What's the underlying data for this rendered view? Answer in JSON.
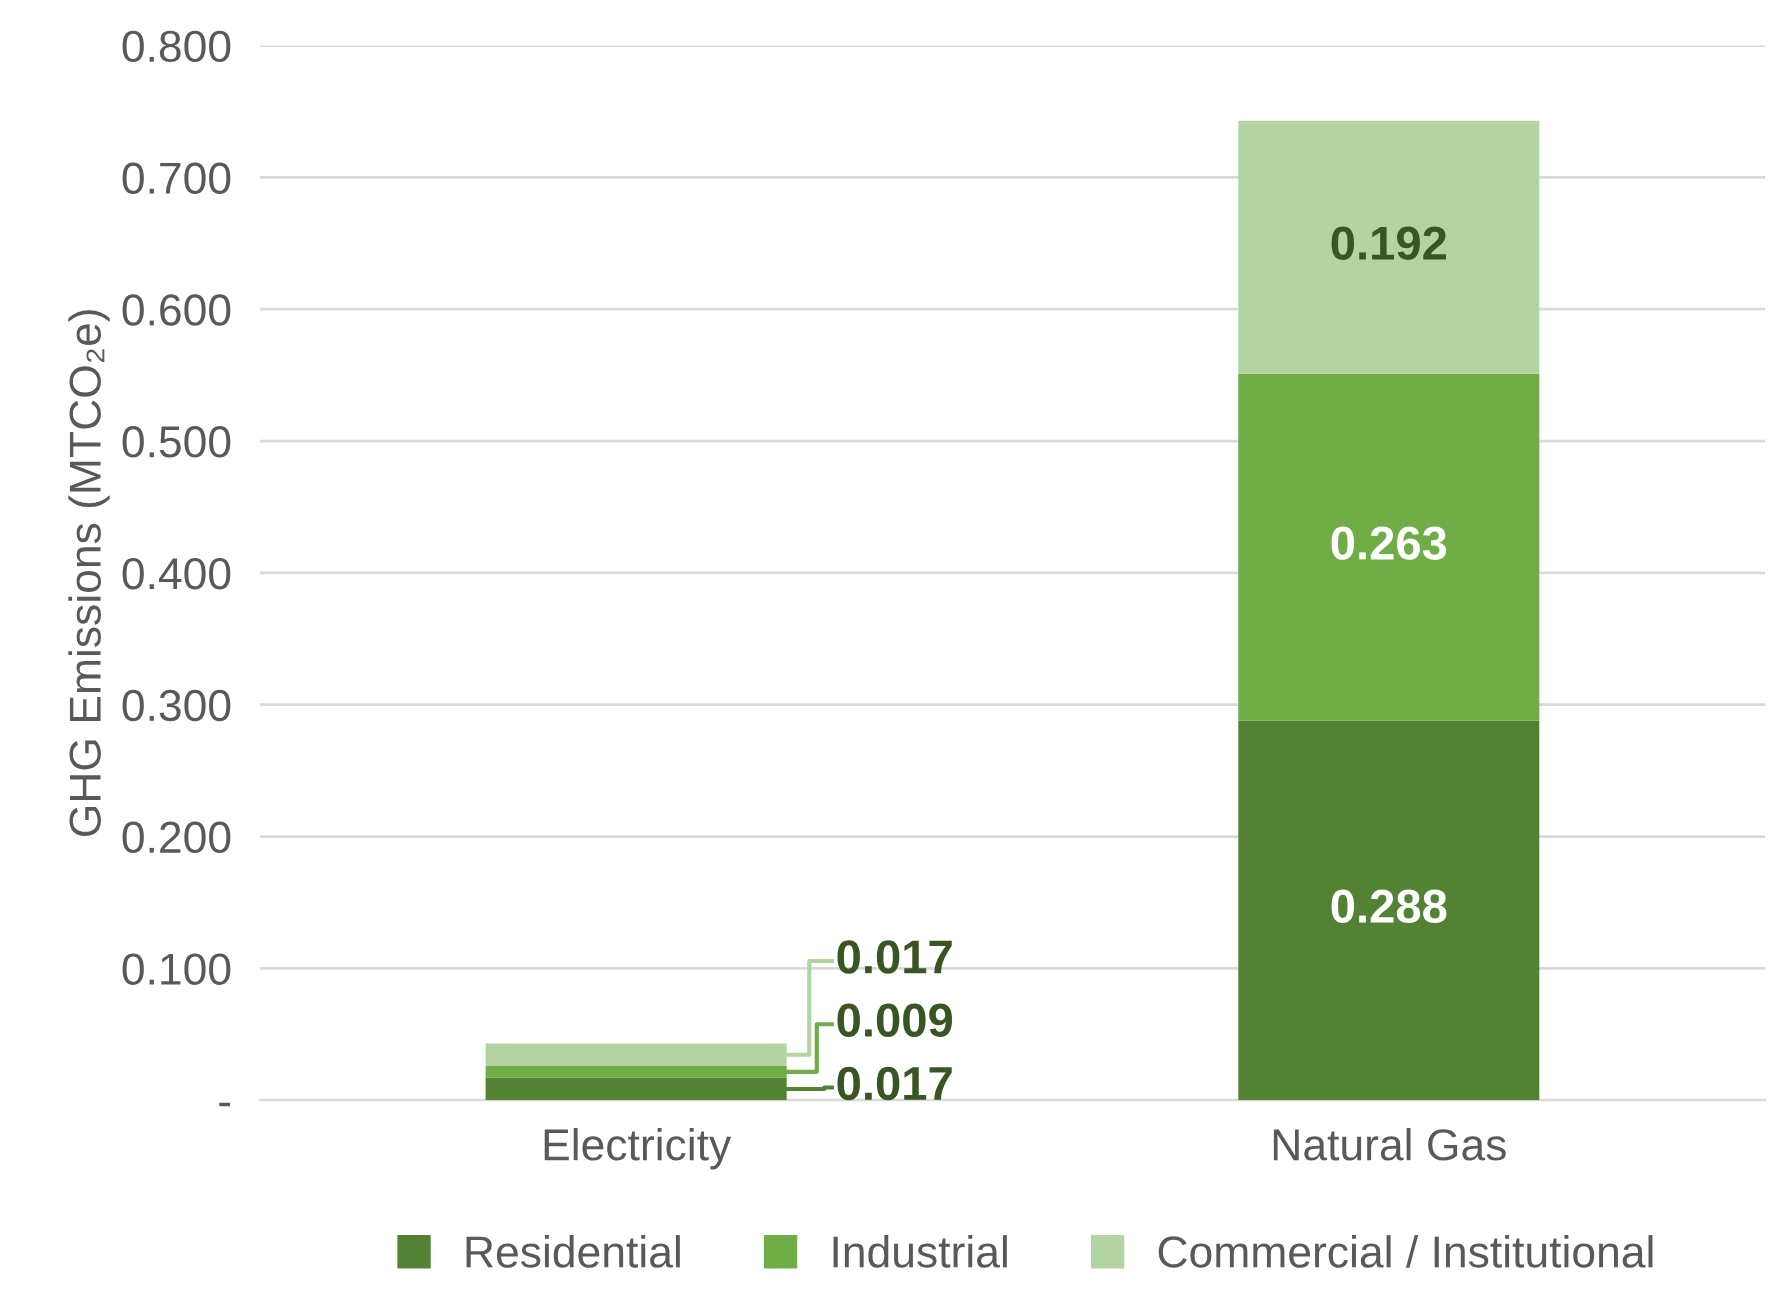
{
  "chart_data": {
    "type": "bar",
    "stacked": true,
    "ylabel": "GHG Emissions (MTCO₂e)",
    "categories": [
      "Electricity",
      "Natural Gas"
    ],
    "series": [
      {
        "name": "Residential",
        "color": "#548235",
        "values": [
          0.017,
          0.288
        ]
      },
      {
        "name": "Industrial",
        "color": "#70ad47",
        "values": [
          0.009,
          0.263
        ]
      },
      {
        "name": "Commercial / Institutional",
        "color": "#b4d3a3",
        "values": [
          0.017,
          0.192
        ]
      }
    ],
    "ylim": [
      0,
      0.8
    ],
    "yticks": [
      {
        "value": 0,
        "label": "-"
      },
      {
        "value": 0.1,
        "label": "0.100"
      },
      {
        "value": 0.2,
        "label": "0.200"
      },
      {
        "value": 0.3,
        "label": "0.300"
      },
      {
        "value": 0.4,
        "label": "0.400"
      },
      {
        "value": 0.5,
        "label": "0.500"
      },
      {
        "value": 0.6,
        "label": "0.600"
      },
      {
        "value": 0.7,
        "label": "0.700"
      },
      {
        "value": 0.8,
        "label": "0.800"
      }
    ],
    "grid": "y",
    "legend": "bottom",
    "data_labels": true
  }
}
